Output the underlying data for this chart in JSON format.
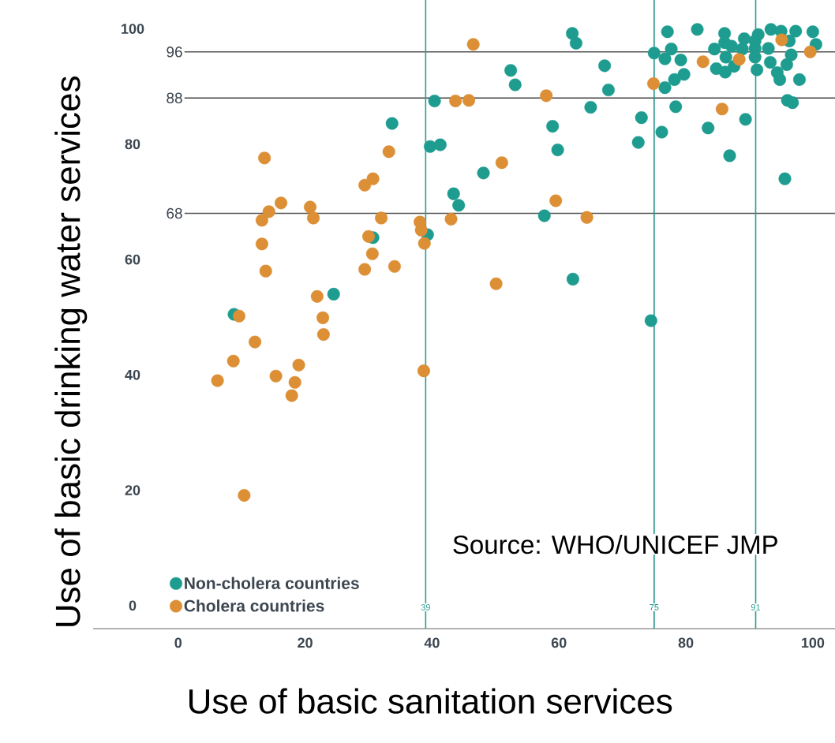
{
  "chart_data": {
    "type": "scatter",
    "xlabel": "Use of basic sanitation services",
    "ylabel": "Use of basic drinking water services",
    "annotations": [
      "Source: WHO/UNICEF JMP"
    ],
    "xlim": [
      -13.4,
      103.5
    ],
    "ylim": [
      -4,
      105
    ],
    "xticks": [
      0,
      20,
      40,
      60,
      80,
      100
    ],
    "yticks": [
      0,
      20,
      40,
      60,
      80,
      100
    ],
    "marker": "circle",
    "legend": "bottom left",
    "ref_lines": [
      {
        "axis": "y",
        "value": 96,
        "label": "96",
        "color": "#555555"
      },
      {
        "axis": "y",
        "value": 88,
        "label": "88",
        "color": "#444444"
      },
      {
        "axis": "y",
        "value": 68,
        "label": "68",
        "color": "#555555"
      },
      {
        "axis": "x",
        "value": 39,
        "label": "39",
        "color": "#2a9d92"
      },
      {
        "axis": "x",
        "value": 75,
        "label": "75",
        "color": "#1f9488"
      },
      {
        "axis": "x",
        "value": 91,
        "label": "91",
        "color": "#2a9d92"
      }
    ],
    "series": [
      {
        "name": "Non-cholera countries",
        "color": "#1e9c8f",
        "x": [
          77.1,
          81.8,
          86.1,
          89.2,
          91.4,
          93.4,
          95.0,
          97.3,
          100.0,
          86.1,
          87.2,
          88.9,
          90.9,
          90.9,
          93.0,
          96.3,
          77.7,
          75.0,
          76.7,
          79.2,
          84.5,
          86.3,
          87.6,
          84.8,
          86.2,
          90.9,
          91.2,
          93.3,
          96.6,
          95.9,
          94.4,
          94.8,
          97.9,
          100.5,
          79.7,
          78.2,
          76.7,
          96.0,
          96.8,
          78.4,
          73.0,
          76.2,
          72.5,
          83.5,
          89.4,
          86.9,
          95.6,
          62.1,
          62.7,
          52.4,
          53.1,
          67.2,
          67.8,
          65.0,
          40.4,
          33.7,
          59.0,
          59.8,
          39.7,
          41.3,
          48.1,
          43.4,
          44.2,
          57.7,
          39.3,
          30.7,
          62.2,
          74.5,
          24.5,
          8.8
        ],
        "values": [
          99.5,
          99.9,
          99.2,
          98.3,
          99.0,
          99.9,
          99.6,
          99.6,
          99.5,
          97.6,
          97.0,
          96.5,
          97.9,
          96.6,
          96.6,
          97.9,
          96.5,
          95.8,
          94.8,
          94.6,
          96.5,
          95.1,
          93.5,
          93.1,
          92.5,
          95.1,
          92.9,
          94.2,
          95.5,
          93.8,
          92.4,
          91.2,
          91.2,
          97.3,
          92.1,
          91.2,
          89.8,
          87.6,
          87.2,
          86.5,
          84.6,
          82.1,
          80.3,
          82.8,
          84.3,
          78.0,
          74.0,
          99.2,
          97.5,
          92.8,
          90.3,
          93.6,
          89.4,
          86.4,
          87.5,
          83.6,
          83.1,
          79.0,
          79.6,
          79.9,
          75.0,
          71.4,
          69.4,
          67.6,
          64.3,
          63.8,
          56.6,
          49.4,
          54.0,
          50.5
        ]
      },
      {
        "name": "Cholera countries",
        "color": "#dc8f35",
        "x": [
          74.9,
          82.7,
          88.4,
          85.7,
          95.1,
          99.6,
          46.5,
          43.7,
          45.8,
          58.0,
          33.2,
          51.0,
          59.5,
          64.4,
          43.0,
          38.1,
          38.3,
          38.8,
          13.6,
          16.2,
          14.3,
          13.2,
          20.8,
          21.3,
          29.4,
          30.7,
          32.0,
          30.0,
          30.6,
          29.4,
          34.1,
          13.2,
          13.8,
          50.1,
          21.9,
          9.6,
          12.1,
          22.8,
          22.9,
          8.7,
          6.2,
          15.4,
          19.0,
          18.4,
          17.9,
          10.4,
          38.7
        ],
        "values": [
          90.5,
          94.3,
          94.7,
          86.1,
          98.1,
          96.0,
          97.3,
          87.5,
          87.6,
          88.4,
          78.7,
          76.8,
          70.2,
          67.3,
          67.0,
          66.5,
          65.1,
          62.8,
          77.6,
          69.8,
          68.3,
          66.8,
          69.1,
          67.2,
          72.9,
          74.0,
          67.2,
          64.0,
          61.0,
          58.3,
          58.8,
          62.7,
          58.0,
          55.8,
          53.6,
          50.2,
          45.7,
          49.9,
          47.0,
          42.4,
          39.0,
          39.8,
          41.7,
          38.7,
          36.4,
          19.1,
          40.7
        ]
      }
    ]
  }
}
